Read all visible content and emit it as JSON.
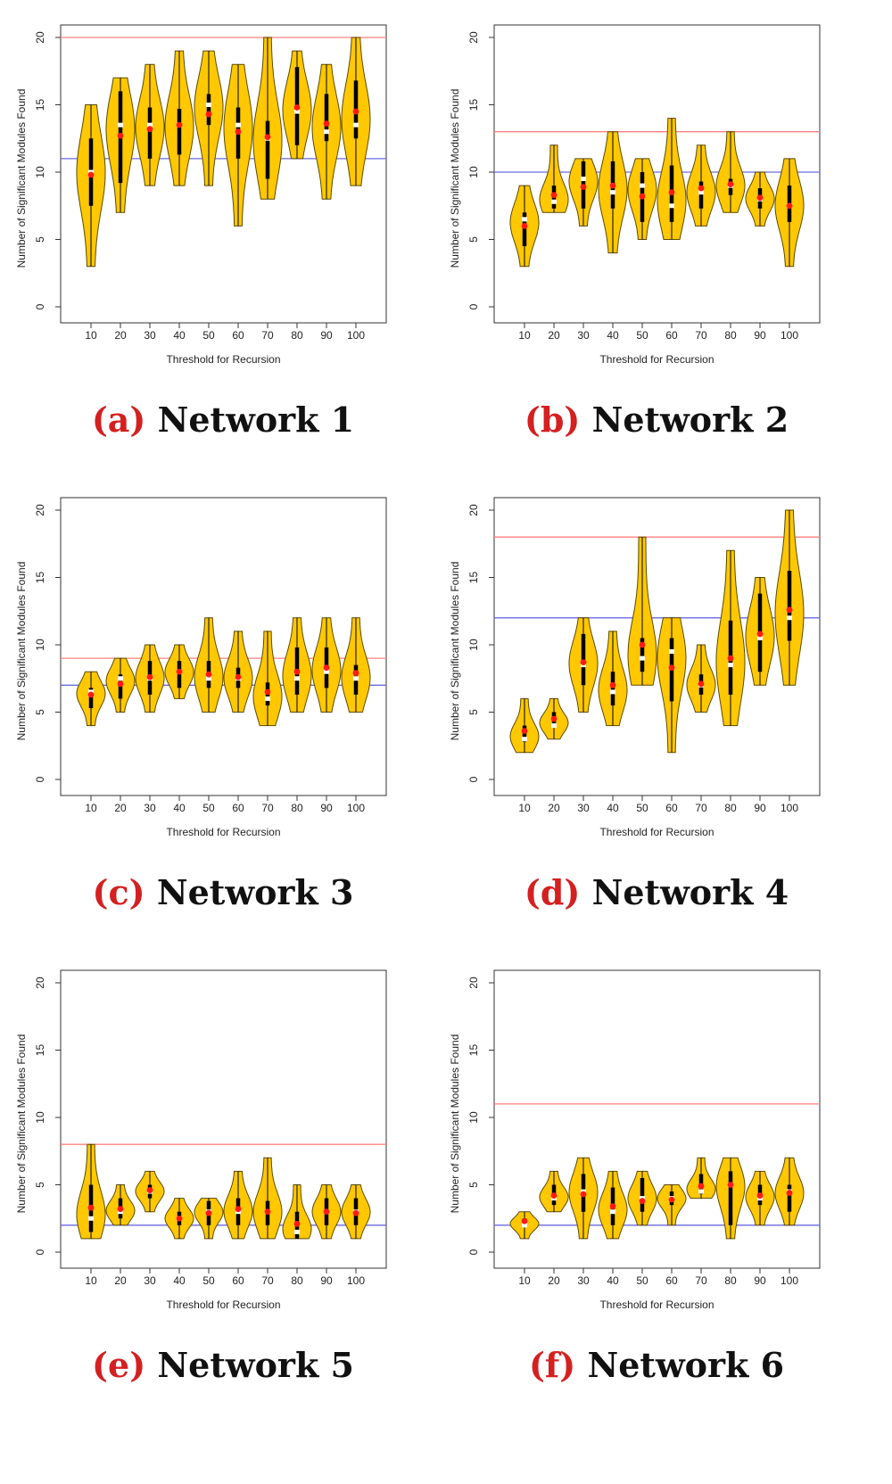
{
  "colors": {
    "violin_fill": "#ffc800",
    "violin_stroke": "#5a4a00",
    "box": "#000000",
    "median": "#ffffff",
    "mean": "#ff1a1a",
    "red_line": "#ff8080",
    "blue_line": "#6a6ae0"
  },
  "chart_data": [
    {
      "type": "violin",
      "caption_letter": "(a)",
      "caption_text": "Network 1",
      "xlabel": "Threshold for Recursion",
      "ylabel": "Number of Significant Modules Found",
      "categories": [
        "10",
        "20",
        "30",
        "40",
        "50",
        "60",
        "70",
        "80",
        "90",
        "100"
      ],
      "ylim": [
        0,
        20
      ],
      "yticks": [
        "0",
        "5",
        "10",
        "15",
        "20"
      ],
      "hlines": {
        "red": 20,
        "blue": 11
      },
      "series": [
        {
          "min": 3,
          "max": 15,
          "q1": 7.5,
          "q3": 12.5,
          "median": 10,
          "mean": 9.8
        },
        {
          "min": 7,
          "max": 17,
          "q1": 9.2,
          "q3": 16,
          "median": 13.5,
          "mean": 12.7
        },
        {
          "min": 9,
          "max": 18,
          "q1": 11,
          "q3": 14.8,
          "median": 13.5,
          "mean": 13.2
        },
        {
          "min": 9,
          "max": 19,
          "q1": 11.3,
          "q3": 14.7,
          "median": 13.5,
          "mean": 13.5
        },
        {
          "min": 9,
          "max": 19,
          "q1": 13.5,
          "q3": 15.8,
          "median": 15,
          "mean": 14.3
        },
        {
          "min": 6,
          "max": 18,
          "q1": 11,
          "q3": 14.8,
          "median": 13.5,
          "mean": 13
        },
        {
          "min": 8,
          "max": 20,
          "q1": 9.5,
          "q3": 13.8,
          "median": 12.5,
          "mean": 12.6
        },
        {
          "min": 11,
          "max": 19,
          "q1": 12,
          "q3": 17.8,
          "median": 14.5,
          "mean": 14.8
        },
        {
          "min": 8,
          "max": 18,
          "q1": 12.3,
          "q3": 15.8,
          "median": 13,
          "mean": 13.6
        },
        {
          "min": 9,
          "max": 20,
          "q1": 12.5,
          "q3": 16.8,
          "median": 13.5,
          "mean": 14.5
        }
      ]
    },
    {
      "type": "violin",
      "caption_letter": "(b)",
      "caption_text": "Network 2",
      "xlabel": "Threshold for Recursion",
      "ylabel": "Number of Significant Modules Found",
      "categories": [
        "10",
        "20",
        "30",
        "40",
        "50",
        "60",
        "70",
        "80",
        "90",
        "100"
      ],
      "ylim": [
        0,
        20
      ],
      "yticks": [
        "0",
        "5",
        "10",
        "15",
        "20"
      ],
      "hlines": {
        "red": 13,
        "blue": 10
      },
      "series": [
        {
          "min": 3,
          "max": 9,
          "q1": 4.5,
          "q3": 7,
          "median": 6.5,
          "mean": 6
        },
        {
          "min": 7,
          "max": 12,
          "q1": 7.3,
          "q3": 9,
          "median": 7.8,
          "mean": 8.3
        },
        {
          "min": 6,
          "max": 11,
          "q1": 7.3,
          "q3": 10.8,
          "median": 9.5,
          "mean": 8.9
        },
        {
          "min": 4,
          "max": 13,
          "q1": 7.3,
          "q3": 10.8,
          "median": 8.5,
          "mean": 9
        },
        {
          "min": 5,
          "max": 11,
          "q1": 6.3,
          "q3": 10,
          "median": 9,
          "mean": 8.2
        },
        {
          "min": 5,
          "max": 14,
          "q1": 6.3,
          "q3": 10.5,
          "median": 7.5,
          "mean": 8.5
        },
        {
          "min": 6,
          "max": 12,
          "q1": 7.3,
          "q3": 9.3,
          "median": 8.5,
          "mean": 8.8
        },
        {
          "min": 7,
          "max": 13,
          "q1": 8.3,
          "q3": 9.5,
          "median": 9,
          "mean": 9.1
        },
        {
          "min": 6,
          "max": 10,
          "q1": 7.3,
          "q3": 8.8,
          "median": 8,
          "mean": 8.1
        },
        {
          "min": 3,
          "max": 11,
          "q1": 6.3,
          "q3": 9,
          "median": 7.5,
          "mean": 7.5
        }
      ]
    },
    {
      "type": "violin",
      "caption_letter": "(c)",
      "caption_text": "Network 3",
      "xlabel": "Threshold for Recursion",
      "ylabel": "Number of Significant Modules Found",
      "categories": [
        "10",
        "20",
        "30",
        "40",
        "50",
        "60",
        "70",
        "80",
        "90",
        "100"
      ],
      "ylim": [
        0,
        20
      ],
      "yticks": [
        "0",
        "5",
        "10",
        "15",
        "20"
      ],
      "hlines": {
        "red": 9,
        "blue": 7
      },
      "series": [
        {
          "min": 4,
          "max": 8,
          "q1": 5.3,
          "q3": 6.8,
          "median": 6.5,
          "mean": 6.3
        },
        {
          "min": 5,
          "max": 9,
          "q1": 6,
          "q3": 7.8,
          "median": 7.5,
          "mean": 7.1
        },
        {
          "min": 5,
          "max": 10,
          "q1": 6.3,
          "q3": 8.8,
          "median": 7.5,
          "mean": 7.6
        },
        {
          "min": 6,
          "max": 10,
          "q1": 6.8,
          "q3": 8.8,
          "median": 8,
          "mean": 8
        },
        {
          "min": 5,
          "max": 12,
          "q1": 6.8,
          "q3": 8.8,
          "median": 7.5,
          "mean": 7.8
        },
        {
          "min": 5,
          "max": 11,
          "q1": 6.8,
          "q3": 8.3,
          "median": 7.5,
          "mean": 7.6
        },
        {
          "min": 4,
          "max": 11,
          "q1": 5.5,
          "q3": 7.2,
          "median": 6,
          "mean": 6.5
        },
        {
          "min": 5,
          "max": 12,
          "q1": 6.3,
          "q3": 9.8,
          "median": 7.5,
          "mean": 8
        },
        {
          "min": 5,
          "max": 12,
          "q1": 6.8,
          "q3": 9.8,
          "median": 8,
          "mean": 8.3
        },
        {
          "min": 5,
          "max": 12,
          "q1": 6.3,
          "q3": 8.5,
          "median": 7.5,
          "mean": 7.9
        }
      ]
    },
    {
      "type": "violin",
      "caption_letter": "(d)",
      "caption_text": "Network 4",
      "xlabel": "Threshold for Recursion",
      "ylabel": "Number of Significant Modules Found",
      "categories": [
        "10",
        "20",
        "30",
        "40",
        "50",
        "60",
        "70",
        "80",
        "90",
        "100"
      ],
      "ylim": [
        0,
        20
      ],
      "yticks": [
        "0",
        "5",
        "10",
        "15",
        "20"
      ],
      "hlines": {
        "red": 18,
        "blue": 12
      },
      "series": [
        {
          "min": 2,
          "max": 6,
          "q1": 2.8,
          "q3": 4,
          "median": 3,
          "mean": 3.6
        },
        {
          "min": 3,
          "max": 6,
          "q1": 4,
          "q3": 5,
          "median": 4,
          "mean": 4.5
        },
        {
          "min": 5,
          "max": 12,
          "q1": 7,
          "q3": 10.8,
          "median": 8.5,
          "mean": 8.7
        },
        {
          "min": 4,
          "max": 11,
          "q1": 5.5,
          "q3": 8,
          "median": 6.5,
          "mean": 7
        },
        {
          "min": 7,
          "max": 18,
          "q1": 8,
          "q3": 10.5,
          "median": 9,
          "mean": 10
        },
        {
          "min": 2,
          "max": 12,
          "q1": 5.8,
          "q3": 10.5,
          "median": 9.5,
          "mean": 8.3
        },
        {
          "min": 5,
          "max": 10,
          "q1": 6.3,
          "q3": 7.8,
          "median": 7,
          "mean": 7.1
        },
        {
          "min": 4,
          "max": 17,
          "q1": 6.3,
          "q3": 11.8,
          "median": 8.5,
          "mean": 9
        },
        {
          "min": 7,
          "max": 15,
          "q1": 8,
          "q3": 13.8,
          "median": 10.5,
          "mean": 10.8
        },
        {
          "min": 7,
          "max": 20,
          "q1": 10.3,
          "q3": 15.5,
          "median": 12,
          "mean": 12.6
        }
      ]
    },
    {
      "type": "violin",
      "caption_letter": "(e)",
      "caption_text": "Network 5",
      "xlabel": "Threshold for Recursion",
      "ylabel": "Number of Significant Modules Found",
      "categories": [
        "10",
        "20",
        "30",
        "40",
        "50",
        "60",
        "70",
        "80",
        "90",
        "100"
      ],
      "ylim": [
        0,
        20
      ],
      "yticks": [
        "0",
        "5",
        "10",
        "15",
        "20"
      ],
      "hlines": {
        "red": 8,
        "blue": 2
      },
      "series": [
        {
          "min": 1,
          "max": 8,
          "q1": 1.5,
          "q3": 5,
          "median": 2.5,
          "mean": 3.3
        },
        {
          "min": 2,
          "max": 5,
          "q1": 2.5,
          "q3": 4,
          "median": 3,
          "mean": 3.2
        },
        {
          "min": 3,
          "max": 6,
          "q1": 4,
          "q3": 5,
          "median": 4.5,
          "mean": 4.6
        },
        {
          "min": 1,
          "max": 4,
          "q1": 2,
          "q3": 3,
          "median": 2.5,
          "mean": 2.5
        },
        {
          "min": 1,
          "max": 4,
          "q1": 2,
          "q3": 3.8,
          "median": 3,
          "mean": 2.9
        },
        {
          "min": 1,
          "max": 6,
          "q1": 2,
          "q3": 4,
          "median": 3,
          "mean": 3.2
        },
        {
          "min": 1,
          "max": 7,
          "q1": 2,
          "q3": 3.8,
          "median": 3,
          "mean": 3
        },
        {
          "min": 1,
          "max": 5,
          "q1": 1,
          "q3": 3,
          "median": 1.5,
          "mean": 2.1
        },
        {
          "min": 1,
          "max": 5,
          "q1": 2,
          "q3": 4,
          "median": 3,
          "mean": 3
        },
        {
          "min": 1,
          "max": 5,
          "q1": 2,
          "q3": 4,
          "median": 3,
          "mean": 2.9
        }
      ]
    },
    {
      "type": "violin",
      "caption_letter": "(f)",
      "caption_text": "Network 6",
      "xlabel": "Threshold for Recursion",
      "ylabel": "Number of Significant Modules Found",
      "categories": [
        "10",
        "20",
        "30",
        "40",
        "50",
        "60",
        "70",
        "80",
        "90",
        "100"
      ],
      "ylim": [
        0,
        20
      ],
      "yticks": [
        "0",
        "5",
        "10",
        "15",
        "20"
      ],
      "hlines": {
        "red": 11,
        "blue": 2
      },
      "series": [
        {
          "min": 1,
          "max": 3,
          "q1": 2,
          "q3": 2.5,
          "median": 2,
          "mean": 2.3
        },
        {
          "min": 3,
          "max": 6,
          "q1": 3.5,
          "q3": 5,
          "median": 4,
          "mean": 4.2
        },
        {
          "min": 1,
          "max": 7,
          "q1": 3,
          "q3": 5.8,
          "median": 4.5,
          "mean": 4.3
        },
        {
          "min": 1,
          "max": 6,
          "q1": 2,
          "q3": 4.8,
          "median": 3,
          "mean": 3.4
        },
        {
          "min": 2,
          "max": 6,
          "q1": 3,
          "q3": 5.5,
          "median": 4,
          "mean": 3.8
        },
        {
          "min": 2,
          "max": 5,
          "q1": 3.5,
          "q3": 4.5,
          "median": 4,
          "mean": 3.9
        },
        {
          "min": 4,
          "max": 7,
          "q1": 4.3,
          "q3": 5.8,
          "median": 4.5,
          "mean": 4.9
        },
        {
          "min": 1,
          "max": 7,
          "q1": 2,
          "q3": 6,
          "median": 5,
          "mean": 5
        },
        {
          "min": 2,
          "max": 6,
          "q1": 3.5,
          "q3": 5,
          "median": 4,
          "mean": 4.2
        },
        {
          "min": 2,
          "max": 7,
          "q1": 3,
          "q3": 5,
          "median": 4.5,
          "mean": 4.4
        }
      ]
    }
  ]
}
